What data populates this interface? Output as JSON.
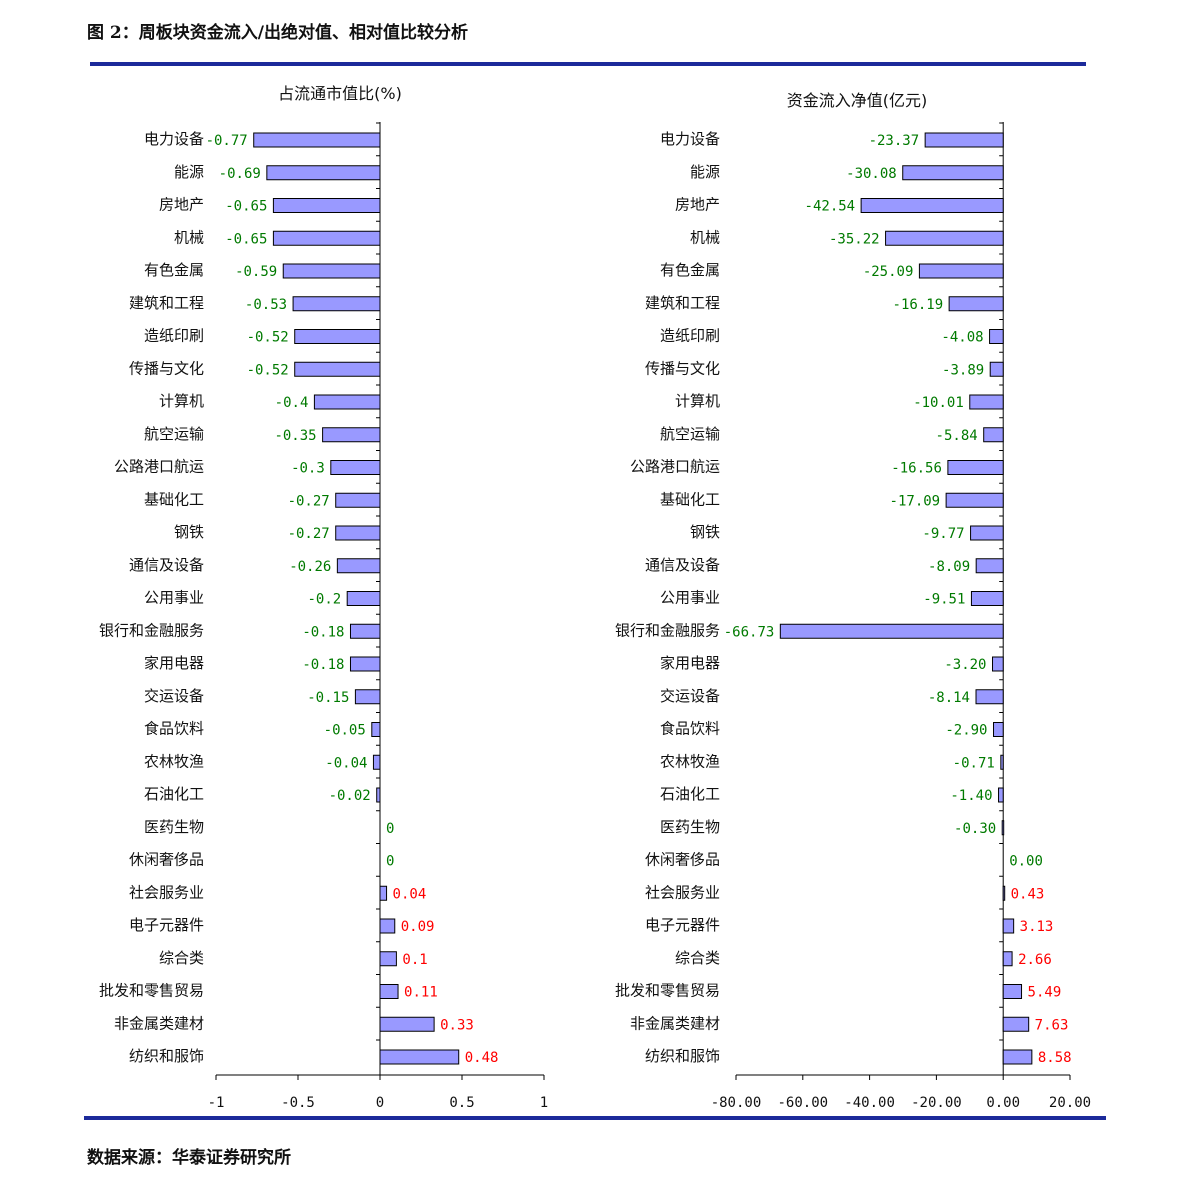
{
  "figure": {
    "title": "图 2：周板块资金流入/出绝对值、相对值比较分析",
    "source": "数据来源：华泰证券研究所"
  },
  "colors": {
    "bar_fill": "#9999ff",
    "bar_stroke": "#000000",
    "negative_label": "#007a00",
    "positive_label": "#ff0000",
    "rule": "#1c2a9a"
  },
  "chart_data": [
    {
      "type": "bar",
      "orientation": "horizontal",
      "title": "占流通市值比(%)",
      "xlim": [
        -1,
        1
      ],
      "xticks": [
        -1,
        -0.5,
        0,
        0.5,
        1
      ],
      "xtick_labels": [
        "-1",
        "-0.5",
        "0",
        "0.5",
        "1"
      ],
      "categories": [
        "电力设备",
        "能源",
        "房地产",
        "机械",
        "有色金属",
        "建筑和工程",
        "造纸印刷",
        "传播与文化",
        "计算机",
        "航空运输",
        "公路港口航运",
        "基础化工",
        "钢铁",
        "通信及设备",
        "公用事业",
        "银行和金融服务",
        "家用电器",
        "交运设备",
        "食品饮料",
        "农林牧渔",
        "石油化工",
        "医药生物",
        "休闲奢侈品",
        "社会服务业",
        "电子元器件",
        "综合类",
        "批发和零售贸易",
        "非金属类建材",
        "纺织和服饰"
      ],
      "values": [
        -0.77,
        -0.69,
        -0.65,
        -0.65,
        -0.59,
        -0.53,
        -0.52,
        -0.52,
        -0.4,
        -0.35,
        -0.3,
        -0.27,
        -0.27,
        -0.26,
        -0.2,
        -0.18,
        -0.18,
        -0.15,
        -0.05,
        -0.04,
        -0.02,
        0,
        0,
        0.04,
        0.09,
        0.1,
        0.11,
        0.33,
        0.48
      ],
      "value_labels": [
        "-0.77",
        "-0.69",
        "-0.65",
        "-0.65",
        "-0.59",
        "-0.53",
        "-0.52",
        "-0.52",
        "-0.4",
        "-0.35",
        "-0.3",
        "-0.27",
        "-0.27",
        "-0.26",
        "-0.2",
        "-0.18",
        "-0.18",
        "-0.15",
        "-0.05",
        "-0.04",
        "-0.02",
        "0",
        "0",
        "0.04",
        "0.09",
        "0.1",
        "0.11",
        "0.33",
        "0.48"
      ],
      "grid": false,
      "legend": "none"
    },
    {
      "type": "bar",
      "orientation": "horizontal",
      "title": "资金流入净值(亿元)",
      "xlim": [
        -80,
        20
      ],
      "xticks": [
        -80,
        -60,
        -40,
        -20,
        0,
        20
      ],
      "xtick_labels": [
        "-80.00",
        "-60.00",
        "-40.00",
        "-20.00",
        "0.00",
        "20.00"
      ],
      "categories": [
        "电力设备",
        "能源",
        "房地产",
        "机械",
        "有色金属",
        "建筑和工程",
        "造纸印刷",
        "传播与文化",
        "计算机",
        "航空运输",
        "公路港口航运",
        "基础化工",
        "钢铁",
        "通信及设备",
        "公用事业",
        "银行和金融服务",
        "家用电器",
        "交运设备",
        "食品饮料",
        "农林牧渔",
        "石油化工",
        "医药生物",
        "休闲奢侈品",
        "社会服务业",
        "电子元器件",
        "综合类",
        "批发和零售贸易",
        "非金属类建材",
        "纺织和服饰"
      ],
      "values": [
        -23.37,
        -30.08,
        -42.54,
        -35.22,
        -25.09,
        -16.19,
        -4.08,
        -3.89,
        -10.01,
        -5.84,
        -16.56,
        -17.09,
        -9.77,
        -8.09,
        -9.51,
        -66.73,
        -3.2,
        -8.14,
        -2.9,
        -0.71,
        -1.4,
        -0.3,
        0,
        0.43,
        3.13,
        2.66,
        5.49,
        7.63,
        8.58
      ],
      "value_labels": [
        "-23.37",
        "-30.08",
        "-42.54",
        "-35.22",
        "-25.09",
        "-16.19",
        "-4.08",
        "-3.89",
        "-10.01",
        "-5.84",
        "-16.56",
        "-17.09",
        "-9.77",
        "-8.09",
        "-9.51",
        "-66.73",
        "-3.20",
        "-8.14",
        "-2.90",
        "-0.71",
        "-1.40",
        "-0.30",
        "0.00",
        "0.43",
        "3.13",
        "2.66",
        "5.49",
        "7.63",
        "8.58"
      ],
      "grid": false,
      "legend": "none"
    }
  ]
}
